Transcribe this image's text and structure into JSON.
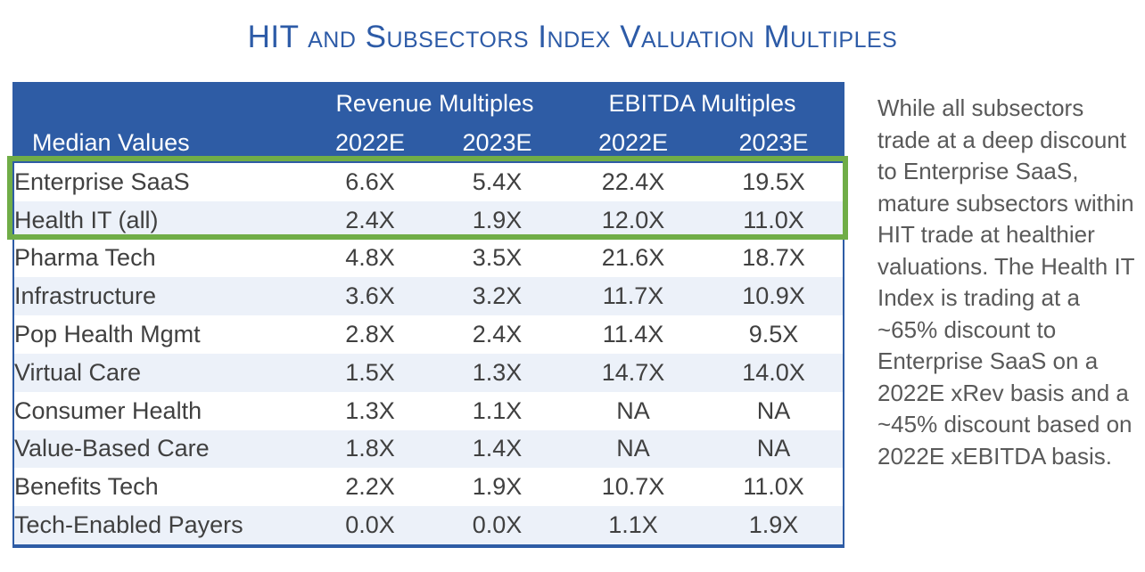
{
  "title": "HIT and Subsectors Index Valuation Multiples",
  "colors": {
    "title_blue": "#2D5BA7",
    "header_blue": "#2E5CA5",
    "alt_row_blue": "#ECF1F9",
    "highlight_green": "#70AD47",
    "table_text": "#404040",
    "note_text": "#595959"
  },
  "table": {
    "row_header_label": "Median Values",
    "column_groups": [
      {
        "label": "Revenue Multiples",
        "columns": [
          "2022E",
          "2023E"
        ]
      },
      {
        "label": "EBITDA Multiples",
        "columns": [
          "2022E",
          "2023E"
        ]
      }
    ],
    "rows": [
      {
        "label": "Enterprise SaaS",
        "values": [
          "6.6X",
          "5.4X",
          "22.4X",
          "19.5X"
        ],
        "highlighted": true
      },
      {
        "label": "Health IT (all)",
        "values": [
          "2.4X",
          "1.9X",
          "12.0X",
          "11.0X"
        ],
        "highlighted": true
      },
      {
        "label": "Pharma Tech",
        "values": [
          "4.8X",
          "3.5X",
          "21.6X",
          "18.7X"
        ],
        "highlighted": false
      },
      {
        "label": "Infrastructure",
        "values": [
          "3.6X",
          "3.2X",
          "11.7X",
          "10.9X"
        ],
        "highlighted": false
      },
      {
        "label": "Pop Health Mgmt",
        "values": [
          "2.8X",
          "2.4X",
          "11.4X",
          "9.5X"
        ],
        "highlighted": false
      },
      {
        "label": "Virtual Care",
        "values": [
          "1.5X",
          "1.3X",
          "14.7X",
          "14.0X"
        ],
        "highlighted": false
      },
      {
        "label": "Consumer Health",
        "values": [
          "1.3X",
          "1.1X",
          "NA",
          "NA"
        ],
        "highlighted": false
      },
      {
        "label": "Value-Based Care",
        "values": [
          "1.8X",
          "1.4X",
          "NA",
          "NA"
        ],
        "highlighted": false
      },
      {
        "label": "Benefits Tech",
        "values": [
          "2.2X",
          "1.9X",
          "10.7X",
          "11.0X"
        ],
        "highlighted": false
      },
      {
        "label": "Tech-Enabled Payers",
        "values": [
          "0.0X",
          "0.0X",
          "1.1X",
          "1.9X"
        ],
        "highlighted": false
      }
    ]
  },
  "note": {
    "text": "While all subsectors trade at a deep discount to Enterprise SaaS, mature subsectors within HIT trade at healthier valuations. The Health IT Index is trading at a ~65% discount to Enterprise SaaS on a 2022E xRev basis and a ~45% discount based on 2022E xEBITDA basis."
  },
  "chart_data": {
    "type": "table",
    "title": "HIT and Subsectors Index Valuation Multiples",
    "columns": [
      "Median Values",
      "Revenue Multiples 2022E",
      "Revenue Multiples 2023E",
      "EBITDA Multiples 2022E",
      "EBITDA Multiples 2023E"
    ],
    "rows": [
      [
        "Enterprise SaaS",
        "6.6X",
        "5.4X",
        "22.4X",
        "19.5X"
      ],
      [
        "Health IT (all)",
        "2.4X",
        "1.9X",
        "12.0X",
        "11.0X"
      ],
      [
        "Pharma Tech",
        "4.8X",
        "3.5X",
        "21.6X",
        "18.7X"
      ],
      [
        "Infrastructure",
        "3.6X",
        "3.2X",
        "11.7X",
        "10.9X"
      ],
      [
        "Pop Health Mgmt",
        "2.8X",
        "2.4X",
        "11.4X",
        "9.5X"
      ],
      [
        "Virtual Care",
        "1.5X",
        "1.3X",
        "14.7X",
        "14.0X"
      ],
      [
        "Consumer Health",
        "1.3X",
        "1.1X",
        "NA",
        "NA"
      ],
      [
        "Value-Based Care",
        "1.8X",
        "1.4X",
        "NA",
        "NA"
      ],
      [
        "Benefits Tech",
        "2.2X",
        "1.9X",
        "10.7X",
        "11.0X"
      ],
      [
        "Tech-Enabled Payers",
        "0.0X",
        "0.0X",
        "1.1X",
        "1.9X"
      ]
    ],
    "highlighted_rows": [
      "Enterprise SaaS",
      "Health IT (all)"
    ],
    "annotation": "Green box highlights Enterprise SaaS and Health IT (all) rows"
  }
}
